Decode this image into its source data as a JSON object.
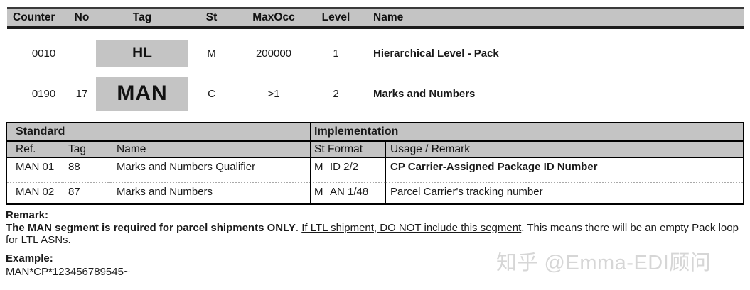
{
  "segment_table": {
    "headers": {
      "counter": "Counter",
      "no": "No",
      "tag": "Tag",
      "st": "St",
      "maxocc": "MaxOcc",
      "level": "Level",
      "name": "Name"
    },
    "rows": [
      {
        "counter": "0010",
        "no": "",
        "tag": "HL",
        "st": "M",
        "maxocc": "200000",
        "level": "1",
        "name": "Hierarchical Level - Pack"
      },
      {
        "counter": "0190",
        "no": "17",
        "tag": "MAN",
        "st": "C",
        "maxocc": ">1",
        "level": "2",
        "name": "Marks and Numbers"
      }
    ]
  },
  "detail_table": {
    "group_headers": {
      "standard": "Standard",
      "implementation": "Implementation"
    },
    "column_headers": {
      "ref": "Ref.",
      "tag": "Tag",
      "name": "Name",
      "st_format": "St Format",
      "usage": "Usage / Remark"
    },
    "rows": [
      {
        "ref": "MAN 01",
        "tag": "88",
        "name": "Marks and Numbers Qualifier",
        "st": "M",
        "format": "ID 2/2",
        "usage": "CP Carrier-Assigned Package ID Number"
      },
      {
        "ref": "MAN 02",
        "tag": "87",
        "name": "Marks and Numbers",
        "st": "M",
        "format": "AN 1/48",
        "usage": "Parcel Carrier's tracking number"
      }
    ]
  },
  "remark": {
    "label": "Remark:",
    "bold_text": "The MAN segment is required for parcel shipments ONLY",
    "mid_text": ". ",
    "underline_text": "If LTL shipment, DO NOT include this segment",
    "tail_text": ". This means there will be an empty Pack loop for LTL ASNs."
  },
  "example": {
    "label": "Example:",
    "value": "MAN*CP*123456789545~"
  },
  "watermark": {
    "text": "知乎 @Emma-EDI顾问"
  },
  "colors": {
    "header_bg": "#c4c4c4",
    "tag_box_bg": "#c4c4c4",
    "border": "#000000",
    "watermark": "#d6d6d6"
  }
}
